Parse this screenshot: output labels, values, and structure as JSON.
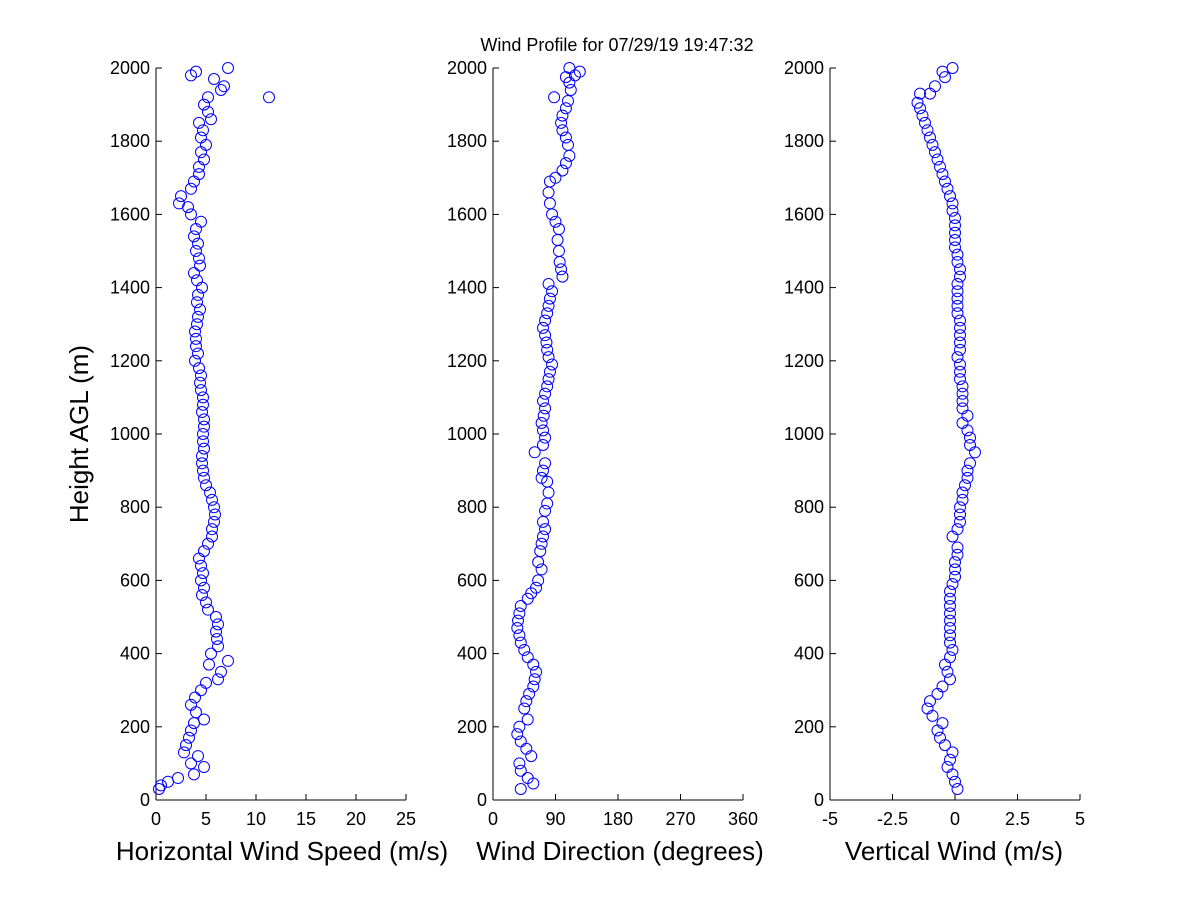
{
  "title": "Wind Profile for  07/29/19 19:47:32",
  "ylabel": "Height AGL (m)",
  "colors": {
    "marker": "#0000ff",
    "axis": "#000000",
    "background": "#ffffff"
  },
  "chart_data": [
    {
      "type": "scatter",
      "xlabel": "Horizontal Wind Speed (m/s)",
      "xlim": [
        0,
        25
      ],
      "ylim": [
        0,
        2000
      ],
      "xticks": [
        "0",
        "5",
        "10",
        "15",
        "20",
        "25"
      ],
      "yticks": [
        "0",
        "200",
        "400",
        "600",
        "800",
        "1000",
        "1200",
        "1400",
        "1600",
        "1800",
        "2000"
      ],
      "points": [
        [
          0.3,
          30
        ],
        [
          0.5,
          40
        ],
        [
          1.2,
          50
        ],
        [
          2.2,
          60
        ],
        [
          3.8,
          70
        ],
        [
          4.8,
          90
        ],
        [
          3.5,
          100
        ],
        [
          4.2,
          120
        ],
        [
          2.8,
          130
        ],
        [
          3,
          150
        ],
        [
          3.3,
          170
        ],
        [
          3.5,
          190
        ],
        [
          3.8,
          210
        ],
        [
          4.8,
          220
        ],
        [
          4,
          240
        ],
        [
          3.5,
          260
        ],
        [
          3.9,
          280
        ],
        [
          4.5,
          300
        ],
        [
          5,
          320
        ],
        [
          6.2,
          330
        ],
        [
          6.5,
          350
        ],
        [
          5.3,
          370
        ],
        [
          7.2,
          380
        ],
        [
          5.5,
          400
        ],
        [
          6.2,
          420
        ],
        [
          6.1,
          440
        ],
        [
          6,
          460
        ],
        [
          6.2,
          480
        ],
        [
          6,
          500
        ],
        [
          5.2,
          520
        ],
        [
          5,
          540
        ],
        [
          4.6,
          560
        ],
        [
          4.8,
          580
        ],
        [
          4.5,
          600
        ],
        [
          4.7,
          620
        ],
        [
          4.5,
          640
        ],
        [
          4.3,
          660
        ],
        [
          4.8,
          680
        ],
        [
          5.2,
          700
        ],
        [
          5.6,
          720
        ],
        [
          5.6,
          740
        ],
        [
          5.8,
          760
        ],
        [
          5.9,
          780
        ],
        [
          5.8,
          800
        ],
        [
          5.6,
          820
        ],
        [
          5.4,
          840
        ],
        [
          5,
          860
        ],
        [
          4.8,
          880
        ],
        [
          4.7,
          900
        ],
        [
          4.6,
          920
        ],
        [
          4.6,
          940
        ],
        [
          4.8,
          960
        ],
        [
          4.7,
          980
        ],
        [
          4.7,
          1000
        ],
        [
          4.8,
          1020
        ],
        [
          4.8,
          1040
        ],
        [
          4.6,
          1060
        ],
        [
          4.7,
          1080
        ],
        [
          4.7,
          1100
        ],
        [
          4.5,
          1120
        ],
        [
          4.4,
          1140
        ],
        [
          4.5,
          1160
        ],
        [
          4.3,
          1180
        ],
        [
          3.9,
          1200
        ],
        [
          4.2,
          1220
        ],
        [
          4,
          1240
        ],
        [
          4,
          1260
        ],
        [
          3.9,
          1280
        ],
        [
          4.1,
          1300
        ],
        [
          4.2,
          1320
        ],
        [
          4.4,
          1340
        ],
        [
          4.1,
          1360
        ],
        [
          4.2,
          1380
        ],
        [
          4.6,
          1400
        ],
        [
          4.1,
          1420
        ],
        [
          3.8,
          1440
        ],
        [
          4.4,
          1460
        ],
        [
          4.3,
          1480
        ],
        [
          4,
          1500
        ],
        [
          4.2,
          1520
        ],
        [
          3.8,
          1540
        ],
        [
          4,
          1560
        ],
        [
          4.5,
          1580
        ],
        [
          3.5,
          1600
        ],
        [
          3.2,
          1620
        ],
        [
          2.3,
          1630
        ],
        [
          2.5,
          1650
        ],
        [
          3.5,
          1670
        ],
        [
          3.8,
          1690
        ],
        [
          4.3,
          1710
        ],
        [
          4.3,
          1730
        ],
        [
          4.8,
          1750
        ],
        [
          4.5,
          1770
        ],
        [
          5,
          1790
        ],
        [
          4.5,
          1810
        ],
        [
          4.7,
          1830
        ],
        [
          4.3,
          1850
        ],
        [
          5.5,
          1860
        ],
        [
          5.2,
          1880
        ],
        [
          4.8,
          1900
        ],
        [
          5.2,
          1920
        ],
        [
          11.3,
          1920
        ],
        [
          6.5,
          1940
        ],
        [
          6.8,
          1950
        ],
        [
          5.8,
          1970
        ],
        [
          3.5,
          1980
        ],
        [
          4,
          1990
        ],
        [
          7.2,
          2000
        ]
      ]
    },
    {
      "type": "scatter",
      "xlabel": "Wind Direction (degrees)",
      "xlim": [
        0,
        360
      ],
      "ylim": [
        0,
        2000
      ],
      "xticks": [
        "0",
        "90",
        "180",
        "270",
        "360"
      ],
      "yticks": [
        "0",
        "200",
        "400",
        "600",
        "800",
        "1000",
        "1200",
        "1400",
        "1600",
        "1800",
        "2000"
      ],
      "points": [
        [
          40,
          30
        ],
        [
          58,
          45
        ],
        [
          50,
          60
        ],
        [
          40,
          80
        ],
        [
          38,
          100
        ],
        [
          55,
          120
        ],
        [
          48,
          140
        ],
        [
          40,
          160
        ],
        [
          35,
          180
        ],
        [
          38,
          200
        ],
        [
          50,
          220
        ],
        [
          45,
          250
        ],
        [
          48,
          270
        ],
        [
          52,
          290
        ],
        [
          58,
          310
        ],
        [
          60,
          330
        ],
        [
          62,
          350
        ],
        [
          58,
          370
        ],
        [
          50,
          390
        ],
        [
          45,
          410
        ],
        [
          40,
          430
        ],
        [
          38,
          450
        ],
        [
          35,
          470
        ],
        [
          36,
          490
        ],
        [
          38,
          510
        ],
        [
          40,
          530
        ],
        [
          50,
          550
        ],
        [
          55,
          565
        ],
        [
          62,
          580
        ],
        [
          65,
          600
        ],
        [
          70,
          630
        ],
        [
          65,
          650
        ],
        [
          68,
          680
        ],
        [
          70,
          700
        ],
        [
          72,
          720
        ],
        [
          75,
          740
        ],
        [
          72,
          760
        ],
        [
          75,
          790
        ],
        [
          78,
          810
        ],
        [
          80,
          840
        ],
        [
          78,
          870
        ],
        [
          70,
          880
        ],
        [
          72,
          900
        ],
        [
          75,
          920
        ],
        [
          60,
          950
        ],
        [
          72,
          970
        ],
        [
          75,
          990
        ],
        [
          72,
          1010
        ],
        [
          70,
          1030
        ],
        [
          73,
          1050
        ],
        [
          75,
          1070
        ],
        [
          72,
          1090
        ],
        [
          75,
          1110
        ],
        [
          78,
          1130
        ],
        [
          80,
          1150
        ],
        [
          82,
          1170
        ],
        [
          85,
          1190
        ],
        [
          80,
          1210
        ],
        [
          78,
          1230
        ],
        [
          77,
          1250
        ],
        [
          75,
          1270
        ],
        [
          72,
          1290
        ],
        [
          75,
          1310
        ],
        [
          78,
          1330
        ],
        [
          80,
          1350
        ],
        [
          82,
          1370
        ],
        [
          85,
          1390
        ],
        [
          80,
          1410
        ],
        [
          100,
          1430
        ],
        [
          98,
          1450
        ],
        [
          96,
          1470
        ],
        [
          95,
          1500
        ],
        [
          93,
          1530
        ],
        [
          95,
          1560
        ],
        [
          90,
          1580
        ],
        [
          85,
          1600
        ],
        [
          82,
          1630
        ],
        [
          80,
          1660
        ],
        [
          82,
          1690
        ],
        [
          90,
          1700
        ],
        [
          100,
          1720
        ],
        [
          105,
          1740
        ],
        [
          110,
          1760
        ],
        [
          108,
          1790
        ],
        [
          105,
          1810
        ],
        [
          100,
          1830
        ],
        [
          98,
          1850
        ],
        [
          100,
          1870
        ],
        [
          105,
          1890
        ],
        [
          108,
          1910
        ],
        [
          112,
          1940
        ],
        [
          88,
          1920
        ],
        [
          110,
          1960
        ],
        [
          105,
          1975
        ],
        [
          118,
          1980
        ],
        [
          125,
          1990
        ],
        [
          110,
          2000
        ]
      ]
    },
    {
      "type": "scatter",
      "xlabel": "Vertical Wind (m/s)",
      "xlim": [
        -5,
        5
      ],
      "ylim": [
        0,
        2000
      ],
      "xticks": [
        "-5",
        "-2.5",
        "0",
        "2.5",
        "5"
      ],
      "yticks": [
        "0",
        "200",
        "400",
        "600",
        "800",
        "1000",
        "1200",
        "1400",
        "1600",
        "1800",
        "2000"
      ],
      "points": [
        [
          0.1,
          30
        ],
        [
          0.0,
          50
        ],
        [
          -0.1,
          70
        ],
        [
          -0.3,
          90
        ],
        [
          -0.2,
          110
        ],
        [
          -0.1,
          130
        ],
        [
          -0.4,
          150
        ],
        [
          -0.6,
          170
        ],
        [
          -0.7,
          190
        ],
        [
          -0.5,
          210
        ],
        [
          -0.9,
          230
        ],
        [
          -1.1,
          250
        ],
        [
          -1.0,
          270
        ],
        [
          -0.7,
          290
        ],
        [
          -0.5,
          310
        ],
        [
          -0.2,
          330
        ],
        [
          -0.3,
          350
        ],
        [
          -0.4,
          370
        ],
        [
          -0.2,
          390
        ],
        [
          -0.1,
          410
        ],
        [
          -0.2,
          430
        ],
        [
          -0.2,
          450
        ],
        [
          -0.2,
          470
        ],
        [
          -0.2,
          490
        ],
        [
          -0.2,
          510
        ],
        [
          -0.2,
          530
        ],
        [
          -0.2,
          550
        ],
        [
          -0.2,
          570
        ],
        [
          -0.1,
          590
        ],
        [
          0.0,
          610
        ],
        [
          0.0,
          630
        ],
        [
          0.0,
          650
        ],
        [
          0.1,
          670
        ],
        [
          0.1,
          690
        ],
        [
          -0.1,
          720
        ],
        [
          0.1,
          740
        ],
        [
          0.2,
          760
        ],
        [
          0.2,
          780
        ],
        [
          0.2,
          800
        ],
        [
          0.3,
          820
        ],
        [
          0.3,
          840
        ],
        [
          0.4,
          860
        ],
        [
          0.5,
          880
        ],
        [
          0.5,
          900
        ],
        [
          0.6,
          920
        ],
        [
          0.8,
          950
        ],
        [
          0.6,
          970
        ],
        [
          0.6,
          990
        ],
        [
          0.5,
          1010
        ],
        [
          0.3,
          1030
        ],
        [
          0.5,
          1050
        ],
        [
          0.3,
          1070
        ],
        [
          0.3,
          1090
        ],
        [
          0.3,
          1110
        ],
        [
          0.3,
          1130
        ],
        [
          0.2,
          1150
        ],
        [
          0.2,
          1170
        ],
        [
          0.2,
          1190
        ],
        [
          0.1,
          1210
        ],
        [
          0.2,
          1230
        ],
        [
          0.2,
          1250
        ],
        [
          0.2,
          1270
        ],
        [
          0.2,
          1290
        ],
        [
          0.2,
          1310
        ],
        [
          0.1,
          1330
        ],
        [
          0.1,
          1350
        ],
        [
          0.1,
          1370
        ],
        [
          0.1,
          1390
        ],
        [
          0.1,
          1410
        ],
        [
          0.2,
          1430
        ],
        [
          0.2,
          1450
        ],
        [
          0.1,
          1470
        ],
        [
          0.1,
          1490
        ],
        [
          0.0,
          1510
        ],
        [
          0.0,
          1530
        ],
        [
          0.0,
          1550
        ],
        [
          0.0,
          1570
        ],
        [
          0.0,
          1590
        ],
        [
          -0.1,
          1610
        ],
        [
          -0.1,
          1630
        ],
        [
          -0.2,
          1650
        ],
        [
          -0.3,
          1670
        ],
        [
          -0.4,
          1690
        ],
        [
          -0.5,
          1710
        ],
        [
          -0.6,
          1730
        ],
        [
          -0.7,
          1750
        ],
        [
          -0.8,
          1770
        ],
        [
          -0.9,
          1790
        ],
        [
          -1.0,
          1810
        ],
        [
          -1.1,
          1830
        ],
        [
          -1.2,
          1850
        ],
        [
          -1.3,
          1870
        ],
        [
          -1.4,
          1890
        ],
        [
          -1.5,
          1905
        ],
        [
          -1.4,
          1930
        ],
        [
          -1.0,
          1930
        ],
        [
          -0.8,
          1950
        ],
        [
          -0.4,
          1975
        ],
        [
          -0.5,
          1990
        ],
        [
          -0.1,
          2000
        ]
      ]
    }
  ]
}
